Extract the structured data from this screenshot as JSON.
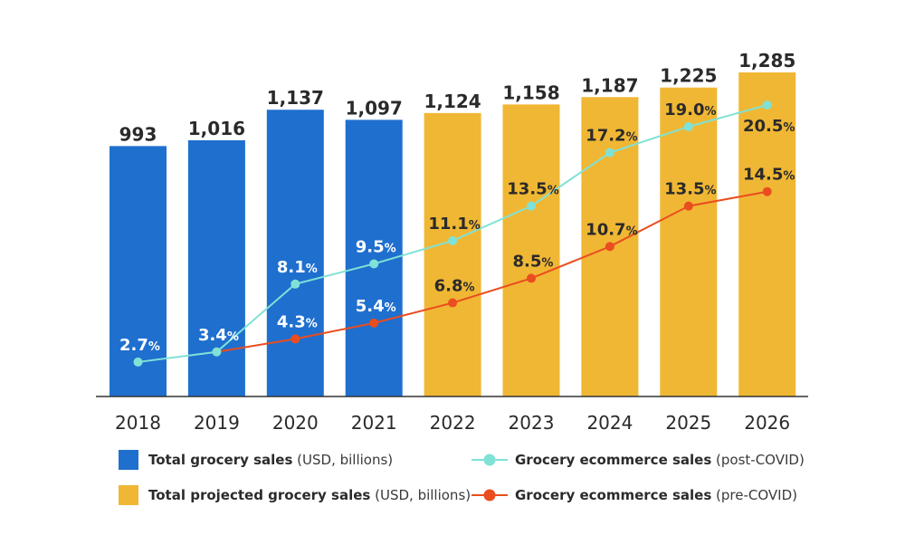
{
  "colors": {
    "actual_bar": "#1f6fcf",
    "projected_bar": "#f0b734",
    "post_covid_line": "#80e2d6",
    "pre_covid_line": "#ea4d1f"
  },
  "legend": {
    "total": {
      "bold": "Total grocery sales",
      "thin": " (USD, billions)"
    },
    "projected": {
      "bold": "Total projected grocery sales",
      "thin": " (USD, billions)"
    },
    "post": {
      "bold": "Grocery ecommerce sales",
      "thin": " (post-COVID)"
    },
    "pre": {
      "bold": "Grocery ecommerce sales",
      "thin": " (pre-COVID)"
    }
  },
  "chart_data": {
    "type": "bar",
    "categories": [
      "2018",
      "2019",
      "2020",
      "2021",
      "2022",
      "2023",
      "2024",
      "2025",
      "2026"
    ],
    "series": [
      {
        "name": "Total grocery sales (USD, billions)",
        "type": "bar",
        "values": [
          993,
          1016,
          1137,
          1097,
          null,
          null,
          null,
          null,
          null
        ],
        "labels": [
          "993",
          "1,016",
          "1,137",
          "1,097",
          "",
          "",
          "",
          "",
          ""
        ]
      },
      {
        "name": "Total projected grocery sales (USD, billions)",
        "type": "bar",
        "values": [
          null,
          null,
          null,
          null,
          1124,
          1158,
          1187,
          1225,
          1285
        ],
        "labels": [
          "",
          "",
          "",
          "",
          "1,124",
          "1,158",
          "1,187",
          "1,225",
          "1,285"
        ]
      },
      {
        "name": "Grocery ecommerce sales (post-COVID)",
        "type": "line",
        "values": [
          2.7,
          3.4,
          8.1,
          9.5,
          11.1,
          13.5,
          17.2,
          19.0,
          20.5
        ]
      },
      {
        "name": "Grocery ecommerce sales (pre-COVID)",
        "type": "line",
        "values": [
          null,
          3.4,
          4.3,
          5.4,
          6.8,
          8.5,
          10.7,
          13.5,
          14.5
        ]
      }
    ],
    "percent_suffix": "%",
    "bar_ylim": [
      0,
      1285
    ],
    "line_ylim": [
      0,
      20.5
    ],
    "grid": false,
    "legend_position": "bottom"
  }
}
